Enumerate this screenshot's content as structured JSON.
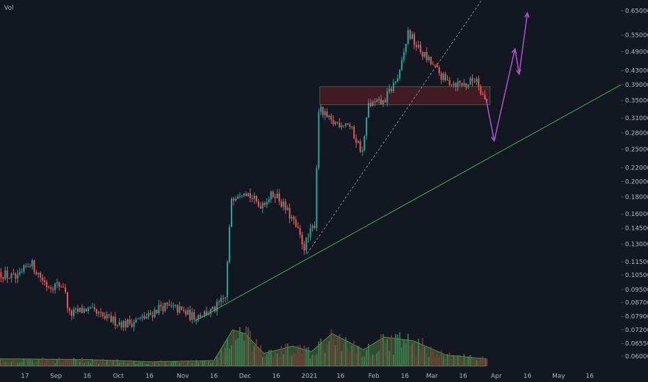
{
  "legend": {
    "vol_label": "Vol"
  },
  "colors": {
    "background": "#131722",
    "up": "#26a69a",
    "down": "#ef5350",
    "trendline": "#4caf50",
    "projection": "#b04fd1",
    "zone_fill": "#7a1f2b",
    "volume_area": "#4a7a3a"
  },
  "chart_data": {
    "type": "candlestick",
    "y_axis": {
      "scale": "log",
      "range": [
        0.058,
        0.7
      ],
      "ticks": [
        "0.65000",
        "0.55000",
        "0.49000",
        "0.43000",
        "0.39000",
        "0.35000",
        "0.31000",
        "0.28000",
        "0.25000",
        "0.22000",
        "0.20000",
        "0.18000",
        "0.16000",
        "0.14500",
        "0.13000",
        "0.11500",
        "0.10500",
        "0.09500",
        "0.08700",
        "0.07900",
        "0.07200",
        "0.06550",
        "0.06000"
      ]
    },
    "x_axis": {
      "ticks": [
        {
          "label": "17",
          "date": "2020-08-17"
        },
        {
          "label": "Sep",
          "date": "2020-09-01"
        },
        {
          "label": "16",
          "date": "2020-09-16"
        },
        {
          "label": "Oct",
          "date": "2020-10-01"
        },
        {
          "label": "16",
          "date": "2020-10-16"
        },
        {
          "label": "Nov",
          "date": "2020-11-01"
        },
        {
          "label": "16",
          "date": "2020-11-16"
        },
        {
          "label": "Dec",
          "date": "2020-12-01"
        },
        {
          "label": "16",
          "date": "2020-12-16"
        },
        {
          "label": "2021",
          "date": "2021-01-01"
        },
        {
          "label": "16",
          "date": "2021-01-16"
        },
        {
          "label": "Feb",
          "date": "2021-02-01"
        },
        {
          "label": "16",
          "date": "2021-02-16"
        },
        {
          "label": "Mar",
          "date": "2021-03-01"
        },
        {
          "label": "16",
          "date": "2021-03-16"
        },
        {
          "label": "Apr",
          "date": "2021-04-01"
        },
        {
          "label": "16",
          "date": "2021-04-16"
        },
        {
          "label": "May",
          "date": "2021-05-01"
        },
        {
          "label": "16",
          "date": "2021-05-16"
        }
      ],
      "range": [
        "2020-08-05",
        "2021-05-31"
      ]
    },
    "price_path": [
      {
        "date": "2020-08-05",
        "price": 0.107
      },
      {
        "date": "2020-08-14",
        "price": 0.102
      },
      {
        "date": "2020-08-20",
        "price": 0.115
      },
      {
        "date": "2020-08-28",
        "price": 0.098
      },
      {
        "date": "2020-09-05",
        "price": 0.098
      },
      {
        "date": "2020-09-08",
        "price": 0.08
      },
      {
        "date": "2020-09-16",
        "price": 0.083
      },
      {
        "date": "2020-09-25",
        "price": 0.078
      },
      {
        "date": "2020-10-05",
        "price": 0.075
      },
      {
        "date": "2020-10-16",
        "price": 0.079
      },
      {
        "date": "2020-10-22",
        "price": 0.085
      },
      {
        "date": "2020-10-30",
        "price": 0.083
      },
      {
        "date": "2020-11-06",
        "price": 0.079
      },
      {
        "date": "2020-11-16",
        "price": 0.082
      },
      {
        "date": "2020-11-22",
        "price": 0.09
      },
      {
        "date": "2020-11-25",
        "price": 0.18
      },
      {
        "date": "2020-12-01",
        "price": 0.19
      },
      {
        "date": "2020-12-08",
        "price": 0.17
      },
      {
        "date": "2020-12-16",
        "price": 0.185
      },
      {
        "date": "2020-12-24",
        "price": 0.155
      },
      {
        "date": "2020-12-30",
        "price": 0.128
      },
      {
        "date": "2021-01-04",
        "price": 0.15
      },
      {
        "date": "2021-01-06",
        "price": 0.33
      },
      {
        "date": "2021-01-12",
        "price": 0.3
      },
      {
        "date": "2021-01-20",
        "price": 0.3
      },
      {
        "date": "2021-01-27",
        "price": 0.245
      },
      {
        "date": "2021-01-30",
        "price": 0.34
      },
      {
        "date": "2021-02-06",
        "price": 0.345
      },
      {
        "date": "2021-02-14",
        "price": 0.42
      },
      {
        "date": "2021-02-18",
        "price": 0.56
      },
      {
        "date": "2021-02-23",
        "price": 0.5
      },
      {
        "date": "2021-02-28",
        "price": 0.46
      },
      {
        "date": "2021-03-08",
        "price": 0.4
      },
      {
        "date": "2021-03-18",
        "price": 0.39
      },
      {
        "date": "2021-03-23",
        "price": 0.41
      },
      {
        "date": "2021-03-27",
        "price": 0.35
      }
    ],
    "volume_profile": [
      {
        "date": "2020-08-05",
        "volume": 0.2
      },
      {
        "date": "2020-09-16",
        "volume": 0.18
      },
      {
        "date": "2020-10-16",
        "volume": 0.12
      },
      {
        "date": "2020-11-16",
        "volume": 0.15
      },
      {
        "date": "2020-11-25",
        "volume": 1.0
      },
      {
        "date": "2020-12-01",
        "volume": 0.9
      },
      {
        "date": "2020-12-10",
        "volume": 0.35
      },
      {
        "date": "2020-12-24",
        "volume": 0.55
      },
      {
        "date": "2021-01-02",
        "volume": 0.4
      },
      {
        "date": "2021-01-12",
        "volume": 0.9
      },
      {
        "date": "2021-01-27",
        "volume": 0.45
      },
      {
        "date": "2021-02-06",
        "volume": 0.8
      },
      {
        "date": "2021-02-20",
        "volume": 0.7
      },
      {
        "date": "2021-03-08",
        "volume": 0.3
      },
      {
        "date": "2021-03-27",
        "volume": 0.2
      }
    ],
    "support_trendline": [
      {
        "date": "2020-11-07",
        "price": 0.0765
      },
      {
        "date": "2021-05-31",
        "price": 0.39
      }
    ],
    "dashed_trendline": [
      {
        "date": "2020-12-31",
        "price": 0.122
      },
      {
        "date": "2021-03-25",
        "price": 0.7
      }
    ],
    "resistance_zone": {
      "date_start": "2021-01-06",
      "date_end": "2021-03-29",
      "price_low": 0.34,
      "price_high": 0.385
    },
    "projection_path": [
      {
        "date": "2021-03-27",
        "price": 0.355
      },
      {
        "date": "2021-03-31",
        "price": 0.265
      },
      {
        "date": "2021-04-10",
        "price": 0.5
      },
      {
        "date": "2021-04-12",
        "price": 0.42
      },
      {
        "date": "2021-04-16",
        "price": 0.64
      }
    ]
  }
}
